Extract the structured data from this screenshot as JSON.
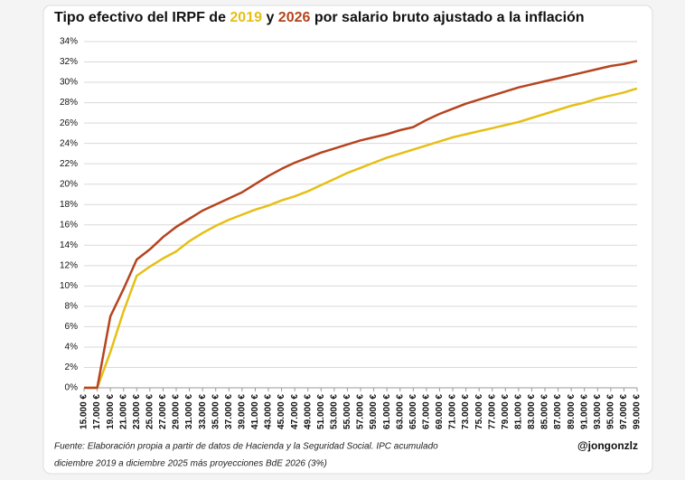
{
  "chart_data": {
    "type": "line",
    "title": [
      "Tipo efectivo del IRPF de ",
      " y ",
      " por salario bruto ajustado a la inflación"
    ],
    "categories": [
      "15.000 €",
      "17.000 €",
      "19.000 €",
      "21.000 €",
      "23.000 €",
      "25.000 €",
      "27.000 €",
      "29.000 €",
      "31.000 €",
      "33.000 €",
      "35.000 €",
      "37.000 €",
      "39.000 €",
      "41.000 €",
      "43.000 €",
      "45.000 €",
      "47.000 €",
      "49.000 €",
      "51.000 €",
      "53.000 €",
      "55.000 €",
      "57.000 €",
      "59.000 €",
      "61.000 €",
      "63.000 €",
      "65.000 €",
      "67.000 €",
      "69.000 €",
      "71.000 €",
      "73.000 €",
      "75.000 €",
      "77.000 €",
      "79.000 €",
      "81.000 €",
      "83.000 €",
      "85.000 €",
      "87.000 €",
      "89.000 €",
      "91.000 €",
      "93.000 €",
      "95.000 €",
      "97.000 €",
      "99.000 €"
    ],
    "series": [
      {
        "name": "2019",
        "color": "#e6bf16",
        "values": [
          0,
          0,
          3.5,
          7.5,
          11.0,
          11.9,
          12.7,
          13.4,
          14.4,
          15.2,
          15.9,
          16.5,
          17.0,
          17.5,
          17.9,
          18.4,
          18.8,
          19.3,
          19.9,
          20.5,
          21.1,
          21.6,
          22.1,
          22.6,
          23.0,
          23.4,
          23.8,
          24.2,
          24.6,
          24.9,
          25.2,
          25.5,
          25.8,
          26.1,
          26.5,
          26.9,
          27.3,
          27.7,
          28.0,
          28.4,
          28.7,
          29.0,
          29.4
        ]
      },
      {
        "name": "2026",
        "color": "#b5441f",
        "values": [
          0,
          0,
          7.0,
          9.7,
          12.6,
          13.6,
          14.8,
          15.8,
          16.6,
          17.4,
          18.0,
          18.6,
          19.2,
          20.0,
          20.8,
          21.5,
          22.1,
          22.6,
          23.1,
          23.5,
          23.9,
          24.3,
          24.6,
          24.9,
          25.3,
          25.6,
          26.3,
          26.9,
          27.4,
          27.9,
          28.3,
          28.7,
          29.1,
          29.5,
          29.8,
          30.1,
          30.4,
          30.7,
          31.0,
          31.3,
          31.6,
          31.8,
          32.1
        ]
      }
    ],
    "ylim": [
      0,
      34
    ],
    "yticks": [
      {
        "value": 0,
        "label": "0%"
      },
      {
        "value": 2,
        "label": "2%"
      },
      {
        "value": 4,
        "label": "4%"
      },
      {
        "value": 6,
        "label": "6%"
      },
      {
        "value": 8,
        "label": "8%"
      },
      {
        "value": 10,
        "label": "10%"
      },
      {
        "value": 12,
        "label": "12%"
      },
      {
        "value": 14,
        "label": "14%"
      },
      {
        "value": 16,
        "label": "16%"
      },
      {
        "value": 18,
        "label": "18%"
      },
      {
        "value": 20,
        "label": "20%"
      },
      {
        "value": 22,
        "label": "22%"
      },
      {
        "value": 24,
        "label": "24%"
      },
      {
        "value": 26,
        "label": "26%"
      },
      {
        "value": 28,
        "label": "28%"
      },
      {
        "value": 30,
        "label": "30%"
      },
      {
        "value": 32,
        "label": "32%"
      },
      {
        "value": 34,
        "label": "34%"
      }
    ],
    "grid": true,
    "source": [
      "Fuente: Elaboración propia a partir de datos de Hacienda y la Seguridad Social. IPC acumulado",
      "diciembre 2019 a diciembre 2025 más proyecciones BdE 2026 (3%)"
    ],
    "author": "@jongonzlz"
  }
}
